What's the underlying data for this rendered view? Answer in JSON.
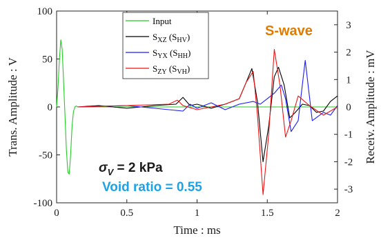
{
  "chart_data": {
    "type": "line",
    "title": "",
    "xlabel": "Time : ms",
    "ylabel_left": "Trans. Amplitude : V",
    "ylabel_right": "Receiv. Amplitude : mV",
    "xlim": [
      0,
      2
    ],
    "ylim_left": [
      -100,
      100
    ],
    "ylim_right": [
      -3.5,
      3.5
    ],
    "x_ticks": [
      "0",
      "0.5",
      "1",
      "1.5",
      "2"
    ],
    "y_ticks_left": [
      "100",
      "50",
      "0",
      "-50",
      "-100"
    ],
    "y_ticks_right": [
      "3",
      "2",
      "1",
      "0",
      "-1",
      "-2",
      "-3"
    ],
    "legend_position": "top-center",
    "annotations": {
      "wave_type": "S-wave",
      "stress_symbol": "σ",
      "stress_subscript": "V",
      "stress_value": " = 2 kPa",
      "void_ratio": "Void ratio = 0.55"
    },
    "colors": {
      "input": "#22cc22",
      "sxz": "#000000",
      "syx": "#1a1aff",
      "szy": "#ee1111",
      "wave_label": "#e07b00",
      "void_label": "#1aa3e8"
    },
    "series": [
      {
        "key": "input",
        "name": "Input",
        "axis": "left",
        "x": [
          0,
          0.01,
          0.02,
          0.03,
          0.04,
          0.05,
          0.06,
          0.07,
          0.08,
          0.09,
          0.1,
          0.11,
          0.12,
          0.13,
          0.14,
          0.15,
          0.2,
          0.5,
          1.0,
          1.5,
          2.0
        ],
        "y": [
          0,
          20,
          50,
          70,
          60,
          25,
          -10,
          -45,
          -68,
          -70,
          -50,
          -20,
          -5,
          0,
          1,
          0,
          0,
          0,
          0,
          0,
          0
        ]
      },
      {
        "key": "sxz",
        "name": "S_XZ (S_HV)",
        "axis": "right",
        "x": [
          0.15,
          0.3,
          0.5,
          0.7,
          0.85,
          0.9,
          0.95,
          1.0,
          1.1,
          1.2,
          1.3,
          1.35,
          1.39,
          1.43,
          1.47,
          1.51,
          1.55,
          1.58,
          1.62,
          1.66,
          1.7,
          1.75,
          1.8,
          1.85,
          1.9,
          1.95,
          2.0
        ],
        "y": [
          0,
          0.05,
          -0.05,
          0.05,
          0.1,
          0.35,
          0.05,
          0.1,
          -0.05,
          0.1,
          0.3,
          0.9,
          1.4,
          0.2,
          -2.0,
          -0.7,
          1.1,
          1.45,
          0.8,
          -0.4,
          -0.2,
          0.1,
          0.05,
          -0.2,
          -0.15,
          0.2,
          0.4
        ]
      },
      {
        "key": "syx",
        "name": "S_YX (S_HH)",
        "axis": "right",
        "x": [
          0.15,
          0.5,
          0.9,
          0.95,
          1.0,
          1.1,
          1.2,
          1.3,
          1.4,
          1.45,
          1.5,
          1.55,
          1.6,
          1.63,
          1.67,
          1.72,
          1.77,
          1.82,
          1.9,
          1.95,
          2.0
        ],
        "y": [
          0,
          0.05,
          -0.15,
          0.1,
          -0.05,
          0.15,
          -0.1,
          0.1,
          0.2,
          0.1,
          0.3,
          0.5,
          0.8,
          0.3,
          -0.9,
          -0.5,
          1.7,
          -0.5,
          -0.2,
          -0.3,
          0.05
        ]
      },
      {
        "key": "szy",
        "name": "S_ZY (S_VH)",
        "axis": "right",
        "x": [
          0.15,
          0.5,
          0.8,
          0.86,
          0.9,
          1.0,
          1.2,
          1.3,
          1.35,
          1.4,
          1.43,
          1.47,
          1.51,
          1.55,
          1.59,
          1.63,
          1.67,
          1.72,
          1.8,
          1.9,
          2.0
        ],
        "y": [
          0,
          0.05,
          0.1,
          0.25,
          0.05,
          -0.1,
          0.1,
          0.3,
          0.9,
          1.3,
          -0.3,
          -3.2,
          -1.0,
          2.1,
          0.8,
          -1.1,
          -0.5,
          0.4,
          0.05,
          -0.3,
          0.0
        ]
      }
    ]
  }
}
